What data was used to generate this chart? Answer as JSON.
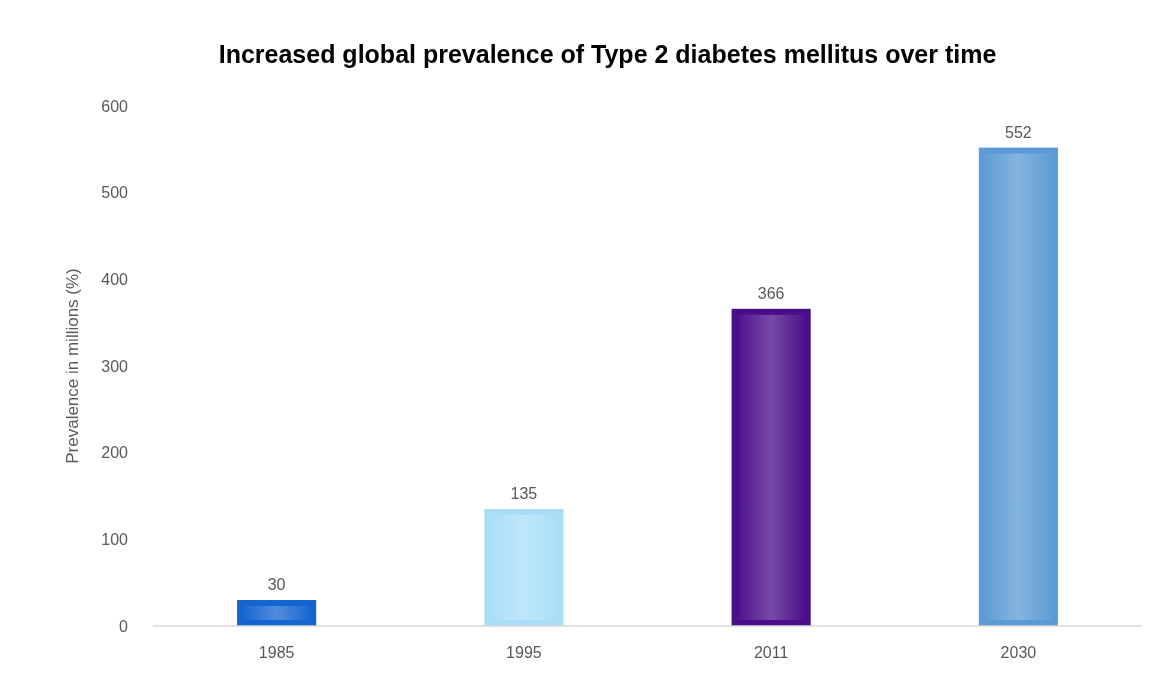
{
  "chart_data": {
    "type": "bar",
    "title": "Increased global prevalence of Type 2 diabetes mellitus over time",
    "ylabel": "Prevalence in millions (%)",
    "categories": [
      "1985",
      "1995",
      "2011",
      "2030"
    ],
    "values": [
      30,
      135,
      366,
      552
    ],
    "colors": [
      "#1565d0",
      "#a9def7",
      "#4a0e8a",
      "#5b9bd5"
    ],
    "ylim": [
      0,
      600
    ],
    "yticks": [
      0,
      100,
      200,
      300,
      400,
      500,
      600
    ],
    "grid": false,
    "data_labels": true
  }
}
